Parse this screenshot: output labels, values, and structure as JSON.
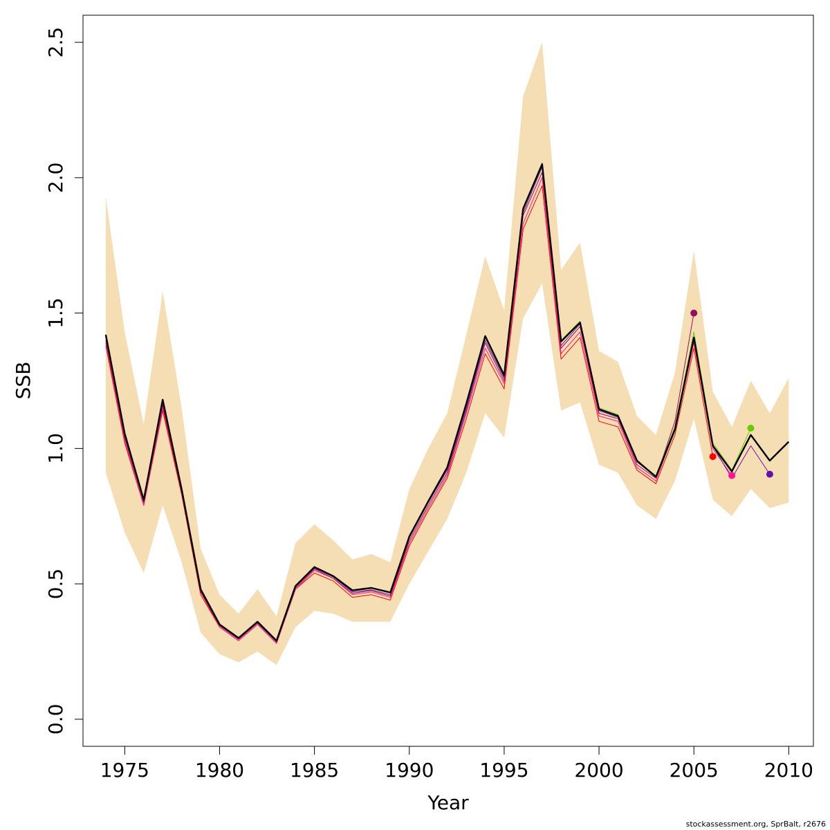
{
  "chart_data": {
    "type": "line",
    "xlabel": "Year",
    "ylabel": "SSB",
    "xlim": [
      1972.8,
      2011.3
    ],
    "ylim": [
      -0.1,
      2.6
    ],
    "x_ticks": [
      1975,
      1980,
      1985,
      1990,
      1995,
      2000,
      2005,
      2010
    ],
    "y_ticks": [
      0.0,
      0.5,
      1.0,
      1.5,
      2.0,
      2.5
    ],
    "x_tick_labels": [
      "1975",
      "1980",
      "1985",
      "1990",
      "1995",
      "2000",
      "2005",
      "2010"
    ],
    "y_tick_labels": [
      "0.0",
      "0.5",
      "1.0",
      "1.5",
      "2.0",
      "2.5"
    ],
    "grid": false,
    "confidence_band": {
      "color": "#f5deb3",
      "x": [
        1974,
        1975,
        1976,
        1977,
        1978,
        1979,
        1980,
        1981,
        1982,
        1983,
        1984,
        1985,
        1986,
        1987,
        1988,
        1989,
        1990,
        1991,
        1992,
        1993,
        1994,
        1995,
        1996,
        1997,
        1998,
        1999,
        2000,
        2001,
        2002,
        2003,
        2004,
        2005,
        2006,
        2007,
        2008,
        2009,
        2010
      ],
      "lower": [
        0.91,
        0.69,
        0.54,
        0.79,
        0.58,
        0.32,
        0.24,
        0.21,
        0.25,
        0.2,
        0.34,
        0.4,
        0.39,
        0.36,
        0.36,
        0.36,
        0.5,
        0.62,
        0.74,
        0.91,
        1.13,
        1.04,
        1.48,
        1.61,
        1.14,
        1.17,
        0.94,
        0.91,
        0.79,
        0.74,
        0.88,
        1.11,
        0.81,
        0.75,
        0.85,
        0.78,
        0.8
      ],
      "upper": [
        1.93,
        1.43,
        1.09,
        1.58,
        1.15,
        0.63,
        0.46,
        0.39,
        0.48,
        0.38,
        0.65,
        0.72,
        0.66,
        0.59,
        0.61,
        0.58,
        0.85,
        1.0,
        1.13,
        1.42,
        1.71,
        1.51,
        2.3,
        2.5,
        1.66,
        1.76,
        1.36,
        1.32,
        1.12,
        1.05,
        1.28,
        1.73,
        1.21,
        1.08,
        1.25,
        1.13,
        1.26
      ]
    },
    "series": [
      {
        "color": "#ff0000",
        "width": 1,
        "x": [
          1974,
          1975,
          1976,
          1977,
          1978,
          1979,
          1980,
          1981,
          1982,
          1983,
          1984,
          1985,
          1986,
          1987,
          1988,
          1989,
          1990,
          1991,
          1992,
          1993,
          1994,
          1995,
          1996,
          1997,
          1998,
          1999,
          2000,
          2001,
          2002,
          2003,
          2004,
          2005,
          2006
        ],
        "values": [
          1.38,
          1.02,
          0.79,
          1.14,
          0.83,
          0.46,
          0.34,
          0.29,
          0.35,
          0.28,
          0.48,
          0.54,
          0.51,
          0.45,
          0.46,
          0.44,
          0.64,
          0.77,
          0.89,
          1.11,
          1.35,
          1.22,
          1.81,
          1.97,
          1.33,
          1.41,
          1.1,
          1.08,
          0.92,
          0.87,
          1.05,
          1.37,
          0.97
        ],
        "end_point": [
          2006,
          0.97
        ]
      },
      {
        "color": "#ff1493",
        "width": 1,
        "x": [
          1974,
          1975,
          1976,
          1977,
          1978,
          1979,
          1980,
          1981,
          1982,
          1983,
          1984,
          1985,
          1986,
          1987,
          1988,
          1989,
          1990,
          1991,
          1992,
          1993,
          1994,
          1995,
          1996,
          1997,
          1998,
          1999,
          2000,
          2001,
          2002,
          2003,
          2004,
          2005,
          2006,
          2007
        ],
        "values": [
          1.39,
          1.03,
          0.79,
          1.15,
          0.84,
          0.47,
          0.34,
          0.29,
          0.35,
          0.28,
          0.48,
          0.55,
          0.52,
          0.46,
          0.47,
          0.45,
          0.65,
          0.78,
          0.9,
          1.13,
          1.37,
          1.24,
          1.83,
          2.0,
          1.35,
          1.43,
          1.12,
          1.1,
          0.93,
          0.88,
          1.07,
          1.39,
          1.0,
          0.9
        ],
        "end_point": [
          2007,
          0.9
        ]
      },
      {
        "color": "#9b0a5b",
        "width": 1,
        "x": [
          1974,
          1975,
          1976,
          1977,
          1978,
          1979,
          1980,
          1981,
          1982,
          1983,
          1984,
          1985,
          1986,
          1987,
          1988,
          1989,
          1990,
          1991,
          1992,
          1993,
          1994,
          1995,
          1996,
          1997,
          1998,
          1999,
          2000,
          2001,
          2002,
          2003,
          2004,
          2005
        ],
        "values": [
          1.4,
          1.04,
          0.8,
          1.16,
          0.84,
          0.47,
          0.345,
          0.295,
          0.355,
          0.285,
          0.485,
          0.555,
          0.52,
          0.465,
          0.475,
          0.455,
          0.66,
          0.79,
          0.91,
          1.14,
          1.39,
          1.25,
          1.86,
          2.02,
          1.37,
          1.45,
          1.13,
          1.11,
          0.94,
          0.89,
          1.1,
          1.5
        ],
        "end_point": [
          2005,
          1.5
        ]
      },
      {
        "color": "#6a0dad",
        "width": 1,
        "x": [
          1974,
          1975,
          1976,
          1977,
          1978,
          1979,
          1980,
          1981,
          1982,
          1983,
          1984,
          1985,
          1986,
          1987,
          1988,
          1989,
          1990,
          1991,
          1992,
          1993,
          1994,
          1995,
          1996,
          1997,
          1998,
          1999,
          2000,
          2001,
          2002,
          2003,
          2004,
          2005,
          2006,
          2007,
          2008,
          2009
        ],
        "values": [
          1.41,
          1.045,
          0.805,
          1.17,
          0.845,
          0.475,
          0.35,
          0.298,
          0.358,
          0.288,
          0.49,
          0.558,
          0.525,
          0.47,
          0.478,
          0.46,
          0.67,
          0.8,
          0.92,
          1.15,
          1.4,
          1.26,
          1.87,
          2.04,
          1.38,
          1.46,
          1.14,
          1.115,
          0.95,
          0.895,
          1.07,
          1.41,
          1.01,
          0.89,
          1.01,
          0.905
        ],
        "end_point": [
          2009,
          0.905
        ]
      },
      {
        "color": "#66cc00",
        "width": 1,
        "x": [
          1974,
          1975,
          1976,
          1977,
          1978,
          1979,
          1980,
          1981,
          1982,
          1983,
          1984,
          1985,
          1986,
          1987,
          1988,
          1989,
          1990,
          1991,
          1992,
          1993,
          1994,
          1995,
          1996,
          1997,
          1998,
          1999,
          2000,
          2001,
          2002,
          2003,
          2004,
          2005,
          2006,
          2007,
          2008
        ],
        "values": [
          1.415,
          1.05,
          0.81,
          1.18,
          0.85,
          0.478,
          0.35,
          0.3,
          0.36,
          0.29,
          0.492,
          0.562,
          0.528,
          0.476,
          0.485,
          0.466,
          0.675,
          0.805,
          0.93,
          1.16,
          1.415,
          1.27,
          1.89,
          2.055,
          1.4,
          1.47,
          1.15,
          1.125,
          0.955,
          0.9,
          1.08,
          1.43,
          1.02,
          0.92,
          1.075
        ],
        "end_point": [
          2008,
          1.075
        ]
      },
      {
        "color": "#000000",
        "width": 2.4,
        "x": [
          1974,
          1975,
          1976,
          1977,
          1978,
          1979,
          1980,
          1981,
          1982,
          1983,
          1984,
          1985,
          1986,
          1987,
          1988,
          1989,
          1990,
          1991,
          1992,
          1993,
          1994,
          1995,
          1996,
          1997,
          1998,
          1999,
          2000,
          2001,
          2002,
          2003,
          2004,
          2005,
          2006,
          2007,
          2008,
          2009,
          2010
        ],
        "values": [
          1.42,
          1.055,
          0.81,
          1.18,
          0.85,
          0.48,
          0.35,
          0.3,
          0.36,
          0.29,
          0.492,
          0.562,
          0.528,
          0.476,
          0.485,
          0.468,
          0.675,
          0.805,
          0.93,
          1.165,
          1.415,
          1.27,
          1.885,
          2.05,
          1.395,
          1.465,
          1.145,
          1.12,
          0.955,
          0.895,
          1.07,
          1.41,
          1.01,
          0.915,
          1.05,
          0.955,
          1.025
        ]
      }
    ]
  },
  "footer": "stockassessment.org, SprBalt, r2676"
}
